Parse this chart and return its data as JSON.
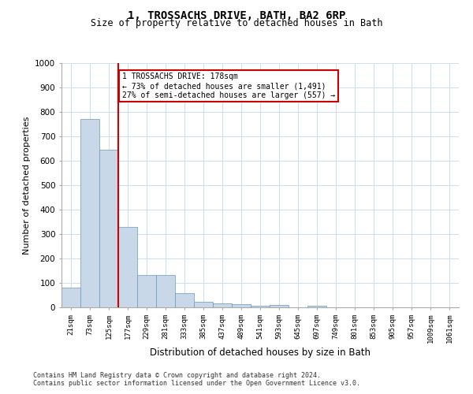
{
  "title1": "1, TROSSACHS DRIVE, BATH, BA2 6RP",
  "title2": "Size of property relative to detached houses in Bath",
  "xlabel": "Distribution of detached houses by size in Bath",
  "ylabel": "Number of detached properties",
  "categories": [
    "21sqm",
    "73sqm",
    "125sqm",
    "177sqm",
    "229sqm",
    "281sqm",
    "333sqm",
    "385sqm",
    "437sqm",
    "489sqm",
    "541sqm",
    "593sqm",
    "645sqm",
    "697sqm",
    "749sqm",
    "801sqm",
    "853sqm",
    "905sqm",
    "957sqm",
    "1009sqm",
    "1061sqm"
  ],
  "values": [
    80,
    770,
    645,
    330,
    133,
    133,
    58,
    22,
    17,
    13,
    8,
    10,
    0,
    8,
    0,
    0,
    0,
    0,
    0,
    0,
    0
  ],
  "bar_color": "#c8d8e8",
  "bar_edge_color": "#6699bb",
  "highlight_line_color": "#cc0000",
  "annotation_text": "1 TROSSACHS DRIVE: 178sqm\n← 73% of detached houses are smaller (1,491)\n27% of semi-detached houses are larger (557) →",
  "annotation_box_color": "#cc0000",
  "ylim": [
    0,
    1000
  ],
  "yticks": [
    0,
    100,
    200,
    300,
    400,
    500,
    600,
    700,
    800,
    900,
    1000
  ],
  "footer1": "Contains HM Land Registry data © Crown copyright and database right 2024.",
  "footer2": "Contains public sector information licensed under the Open Government Licence v3.0.",
  "bg_color": "#ffffff",
  "grid_color": "#ccddee"
}
